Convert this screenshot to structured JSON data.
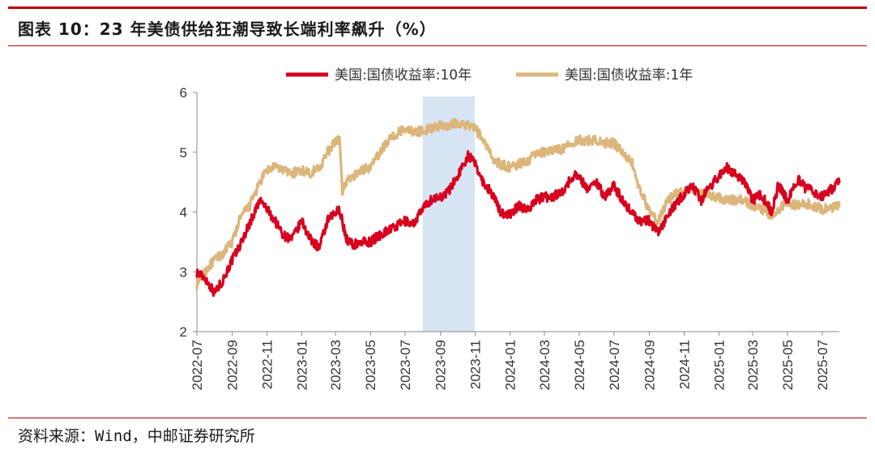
{
  "header": {
    "title": "图表 10：23 年美债供给狂潮导致长端利率飙升（%）"
  },
  "footer": {
    "source": "资料来源：Wind，中邮证券研究所"
  },
  "colors": {
    "accent_rule": "#c00000",
    "series_10y": "#d7001f",
    "series_1y": "#dcb57a",
    "highlight": "#c6d9f0"
  },
  "chart_data": {
    "type": "line",
    "title": "23 年美债供给狂潮导致长端利率飙升（%）",
    "xlabel": "",
    "ylabel": "%",
    "ylim": [
      2,
      6
    ],
    "yticks": [
      "2",
      "3",
      "4",
      "5",
      "6"
    ],
    "xticks": [
      "2022-07",
      "2022-09",
      "2022-11",
      "2023-01",
      "2023-03",
      "2023-05",
      "2023-07",
      "2023-09",
      "2023-11",
      "2024-01",
      "2024-03",
      "2024-05",
      "2024-07",
      "2024-09",
      "2024-11",
      "2025-01",
      "2025-03",
      "2025-05",
      "2025-07"
    ],
    "x_range": [
      "2022-07-01",
      "2025-07-31"
    ],
    "highlight_band": {
      "start": "2023-08-01",
      "end": "2023-10-31"
    },
    "legend": [
      "美国:国债收益率:10年",
      "美国:国债收益率:1年"
    ],
    "series": [
      {
        "name": "美国:国债收益率:10年",
        "x": [
          "2022-07-01",
          "2022-07-15",
          "2022-08-01",
          "2022-08-15",
          "2022-09-01",
          "2022-09-15",
          "2022-10-01",
          "2022-10-20",
          "2022-11-01",
          "2022-11-15",
          "2022-12-01",
          "2022-12-15",
          "2023-01-01",
          "2023-01-15",
          "2023-02-01",
          "2023-02-15",
          "2023-03-08",
          "2023-03-20",
          "2023-04-01",
          "2023-04-15",
          "2023-05-01",
          "2023-05-15",
          "2023-06-01",
          "2023-06-15",
          "2023-07-01",
          "2023-07-15",
          "2023-08-01",
          "2023-08-15",
          "2023-09-01",
          "2023-09-15",
          "2023-10-01",
          "2023-10-19",
          "2023-11-01",
          "2023-11-15",
          "2023-12-01",
          "2023-12-15",
          "2024-01-01",
          "2024-01-15",
          "2024-02-01",
          "2024-02-15",
          "2024-03-01",
          "2024-03-15",
          "2024-04-01",
          "2024-04-25",
          "2024-05-15",
          "2024-06-01",
          "2024-06-15",
          "2024-07-01",
          "2024-07-15",
          "2024-08-01",
          "2024-08-15",
          "2024-09-01",
          "2024-09-16",
          "2024-10-01",
          "2024-10-15",
          "2024-11-01",
          "2024-11-15",
          "2024-12-01",
          "2024-12-15",
          "2025-01-13",
          "2025-02-01",
          "2025-02-15",
          "2025-03-01",
          "2025-03-15",
          "2025-04-04",
          "2025-04-15",
          "2025-05-01",
          "2025-05-20",
          "2025-06-01",
          "2025-06-15",
          "2025-07-01",
          "2025-07-31"
        ],
        "values": [
          3.0,
          2.9,
          2.65,
          2.85,
          3.2,
          3.45,
          3.8,
          4.2,
          4.05,
          3.85,
          3.6,
          3.55,
          3.85,
          3.55,
          3.4,
          3.85,
          4.05,
          3.55,
          3.45,
          3.5,
          3.5,
          3.6,
          3.7,
          3.75,
          3.85,
          3.8,
          4.05,
          4.2,
          4.25,
          4.35,
          4.6,
          4.95,
          4.8,
          4.5,
          4.3,
          4.0,
          3.95,
          4.1,
          4.05,
          4.2,
          4.25,
          4.25,
          4.35,
          4.65,
          4.4,
          4.5,
          4.25,
          4.45,
          4.2,
          4.0,
          3.85,
          3.85,
          3.65,
          3.9,
          4.1,
          4.3,
          4.45,
          4.2,
          4.4,
          4.75,
          4.6,
          4.5,
          4.2,
          4.3,
          4.0,
          4.45,
          4.2,
          4.55,
          4.4,
          4.35,
          4.25,
          4.5
        ]
      },
      {
        "name": "美国:国债收益率:1年",
        "x": [
          "2022-07-01",
          "2022-07-15",
          "2022-08-01",
          "2022-08-15",
          "2022-09-01",
          "2022-09-15",
          "2022-10-01",
          "2022-10-20",
          "2022-11-01",
          "2022-11-15",
          "2022-12-01",
          "2022-12-15",
          "2023-01-01",
          "2023-01-15",
          "2023-02-01",
          "2023-02-15",
          "2023-03-08",
          "2023-03-13",
          "2023-03-20",
          "2023-04-01",
          "2023-04-15",
          "2023-05-01",
          "2023-05-15",
          "2023-06-01",
          "2023-06-15",
          "2023-07-01",
          "2023-07-15",
          "2023-08-01",
          "2023-08-15",
          "2023-09-01",
          "2023-09-15",
          "2023-10-01",
          "2023-10-19",
          "2023-11-01",
          "2023-11-15",
          "2023-12-01",
          "2023-12-15",
          "2024-01-01",
          "2024-01-15",
          "2024-02-01",
          "2024-02-15",
          "2024-03-01",
          "2024-03-15",
          "2024-04-01",
          "2024-04-25",
          "2024-05-15",
          "2024-06-01",
          "2024-06-15",
          "2024-07-01",
          "2024-07-15",
          "2024-08-01",
          "2024-08-10",
          "2024-08-20",
          "2024-09-01",
          "2024-09-16",
          "2024-10-01",
          "2024-10-15",
          "2024-11-01",
          "2024-11-15",
          "2024-12-01",
          "2024-12-15",
          "2025-01-13",
          "2025-02-01",
          "2025-02-15",
          "2025-03-01",
          "2025-03-15",
          "2025-04-04",
          "2025-04-15",
          "2025-05-01",
          "2025-05-20",
          "2025-06-01",
          "2025-06-15",
          "2025-07-01",
          "2025-07-31"
        ],
        "values": [
          2.8,
          3.0,
          3.2,
          3.3,
          3.5,
          3.9,
          4.1,
          4.5,
          4.7,
          4.75,
          4.7,
          4.65,
          4.7,
          4.65,
          4.75,
          5.0,
          5.25,
          4.35,
          4.5,
          4.6,
          4.7,
          4.75,
          4.95,
          5.2,
          5.3,
          5.4,
          5.35,
          5.35,
          5.4,
          5.45,
          5.45,
          5.5,
          5.45,
          5.4,
          5.2,
          4.9,
          4.8,
          4.75,
          4.8,
          4.85,
          5.0,
          5.0,
          5.05,
          5.05,
          5.2,
          5.2,
          5.2,
          5.15,
          5.15,
          5.0,
          4.85,
          4.5,
          4.3,
          4.0,
          3.85,
          4.15,
          4.3,
          4.35,
          4.4,
          4.3,
          4.3,
          4.2,
          4.2,
          4.2,
          4.1,
          4.05,
          3.95,
          4.05,
          4.15,
          4.1,
          4.15,
          4.1,
          4.05,
          4.1
        ]
      }
    ]
  }
}
